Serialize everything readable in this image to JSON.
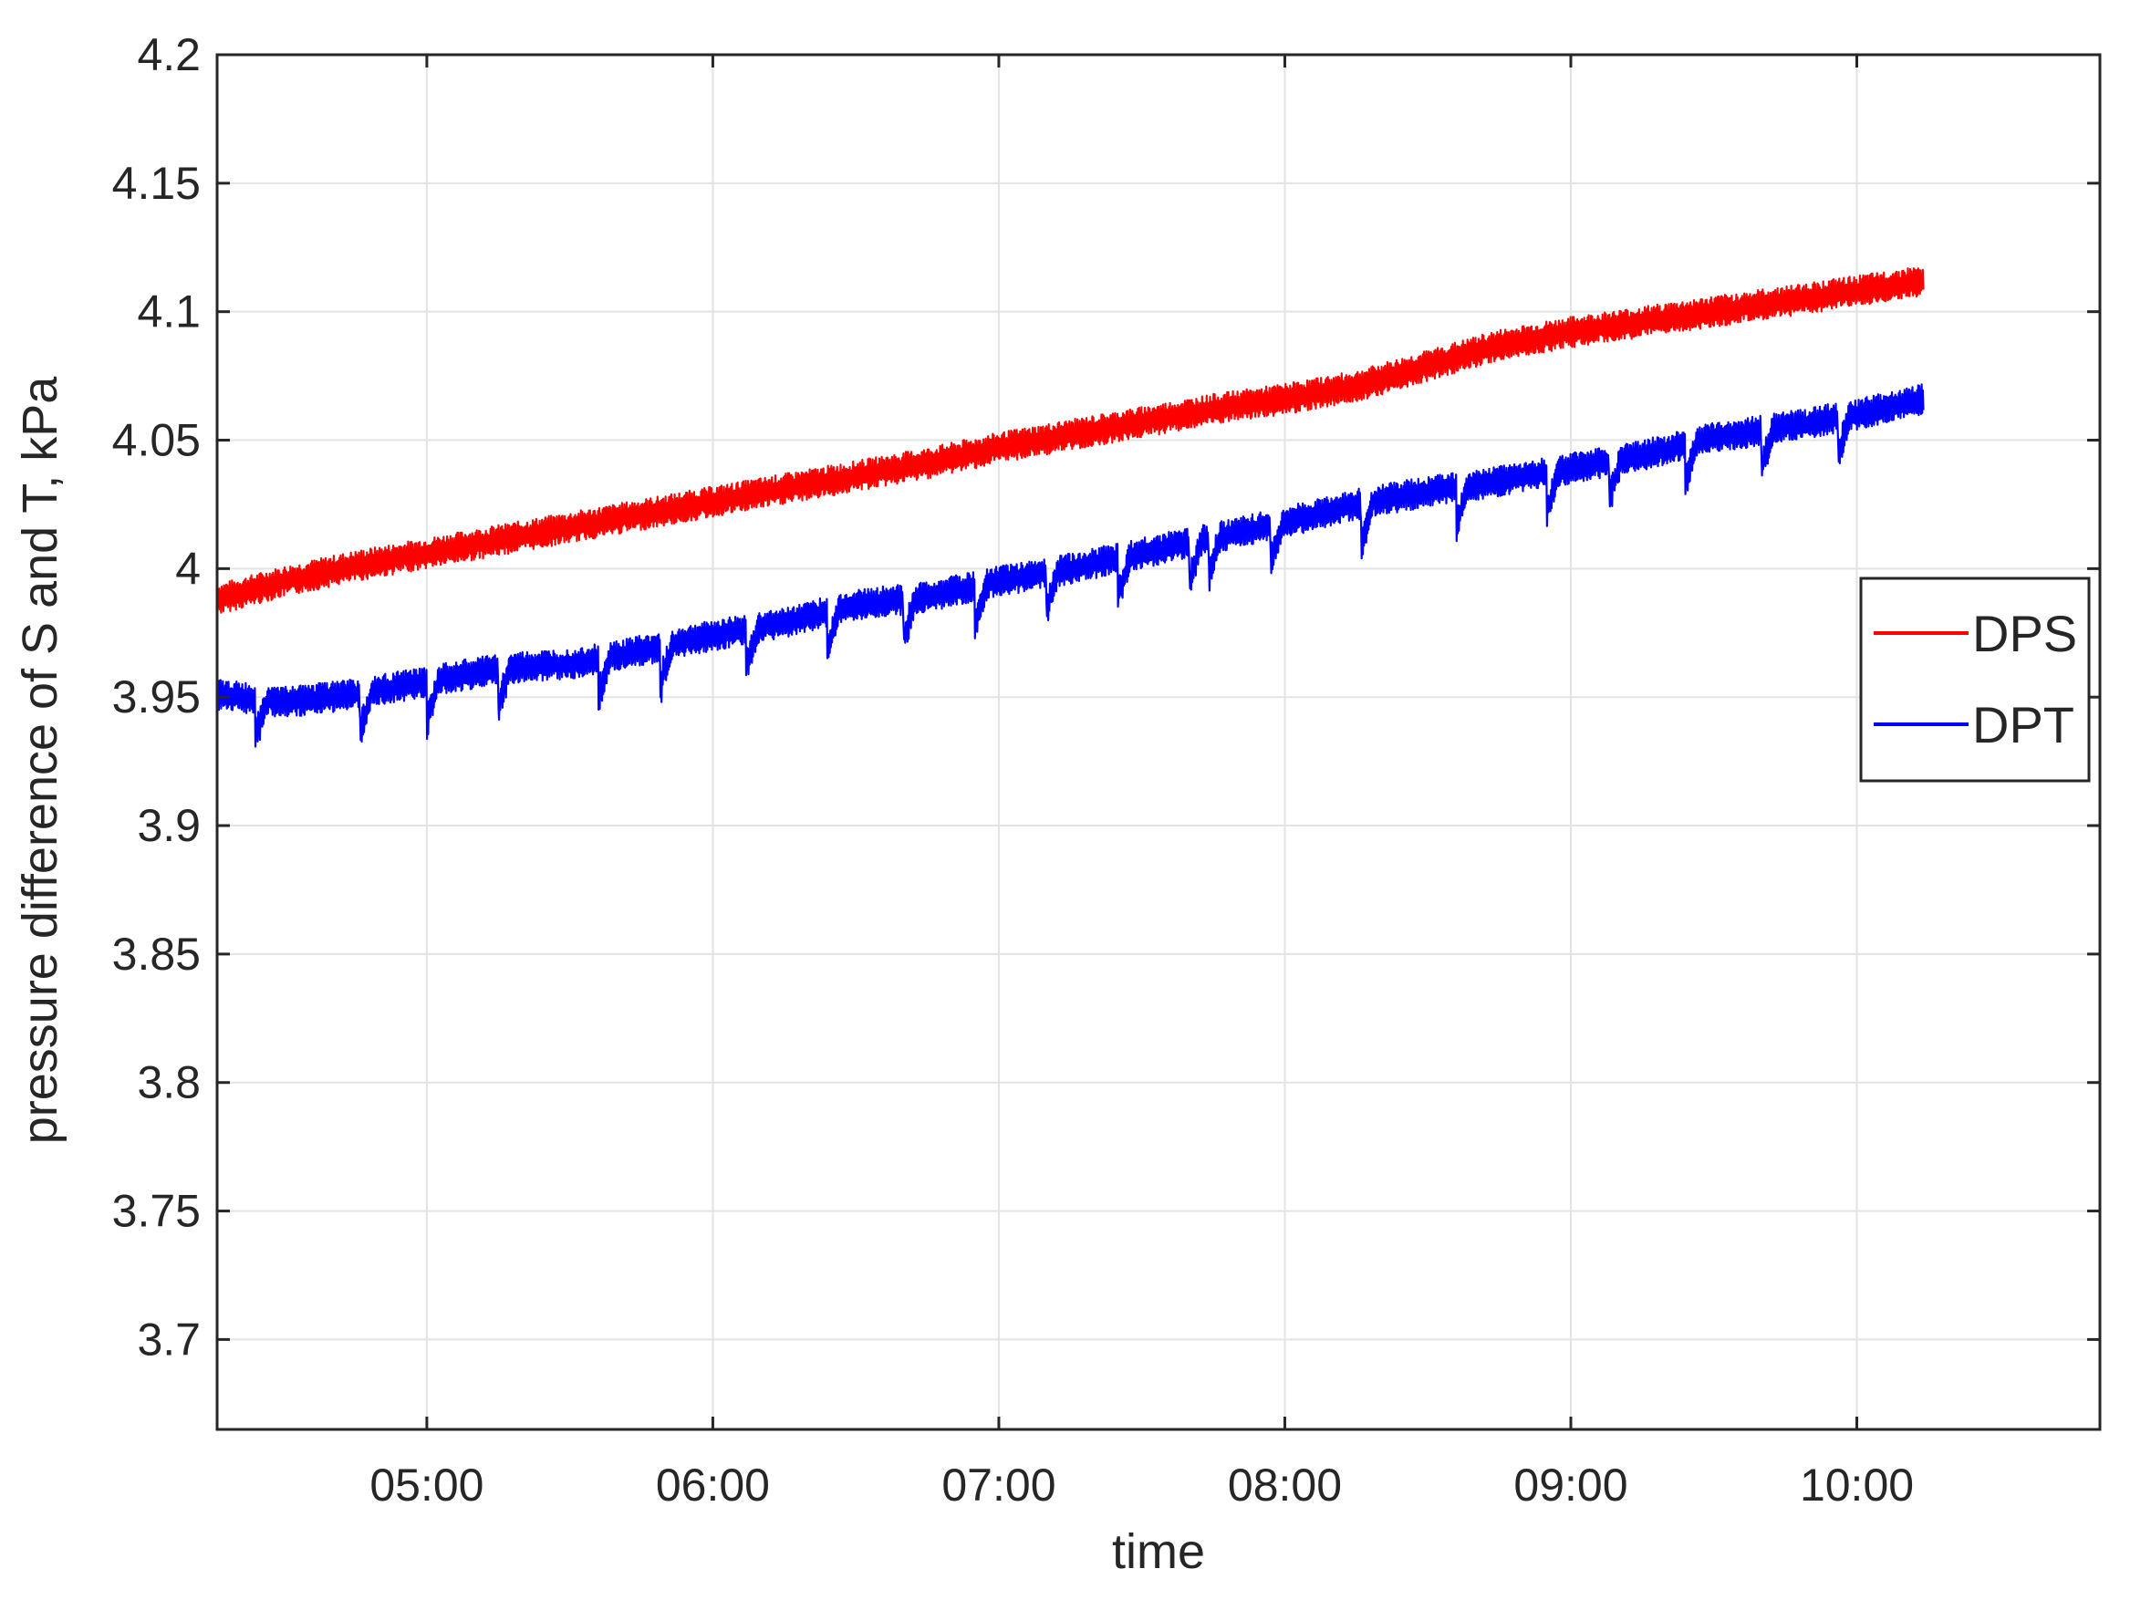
{
  "chart_data": {
    "type": "line",
    "title": "",
    "xlabel": "time",
    "ylabel": "pressure difference of S and T, kPa",
    "x_unit": "time of day",
    "xlim": [
      "04:16",
      "10:51"
    ],
    "ylim": [
      3.665,
      4.2
    ],
    "x_ticks": [
      "05:00",
      "06:00",
      "07:00",
      "08:00",
      "09:00",
      "10:00"
    ],
    "y_ticks": [
      4.2,
      4.15,
      4.1,
      4.05,
      4,
      3.95,
      3.9,
      3.85,
      3.8,
      3.75,
      3.7
    ],
    "y_tick_labels": [
      "4.2",
      "4.15",
      "4.1",
      "4.05",
      "4",
      "3.95",
      "3.9",
      "3.85",
      "3.8",
      "3.75",
      "3.7"
    ],
    "grid": true,
    "legend_position": "right",
    "series": [
      {
        "name": "DPS",
        "color": "#ff0000",
        "x": [
          "04:16",
          "04:30",
          "04:45",
          "05:00",
          "05:15",
          "05:30",
          "05:45",
          "06:00",
          "06:15",
          "06:30",
          "06:45",
          "07:00",
          "07:15",
          "07:30",
          "07:45",
          "08:00",
          "08:15",
          "08:30",
          "08:45",
          "09:00",
          "09:15",
          "09:30",
          "09:45",
          "10:00",
          "10:14"
        ],
        "values": [
          3.988,
          3.995,
          4.001,
          4.006,
          4.011,
          4.016,
          4.021,
          4.026,
          4.031,
          4.036,
          4.041,
          4.047,
          4.052,
          4.057,
          4.062,
          4.066,
          4.071,
          4.079,
          4.087,
          4.092,
          4.096,
          4.1,
          4.104,
          4.108,
          4.112
        ],
        "band_amplitude": 0.006
      },
      {
        "name": "DPT",
        "color": "#0000ff",
        "x": [
          "04:16",
          "04:30",
          "04:45",
          "05:00",
          "05:15",
          "05:30",
          "05:45",
          "06:00",
          "06:15",
          "06:30",
          "06:45",
          "07:00",
          "07:15",
          "07:30",
          "07:45",
          "08:00",
          "08:15",
          "08:30",
          "08:45",
          "09:00",
          "09:15",
          "09:30",
          "09:45",
          "10:00",
          "10:14"
        ],
        "values": [
          3.951,
          3.948,
          3.951,
          3.956,
          3.961,
          3.963,
          3.968,
          3.974,
          3.979,
          3.986,
          3.989,
          3.995,
          4.0,
          4.006,
          4.012,
          4.018,
          4.025,
          4.03,
          4.034,
          4.039,
          4.044,
          4.051,
          4.055,
          4.06,
          4.066
        ],
        "dip_times": [
          "04:24",
          "04:46",
          "05:00",
          "05:15",
          "05:36",
          "05:49",
          "06:07",
          "06:24",
          "06:40",
          "06:55",
          "07:10",
          "07:25",
          "07:40",
          "07:44",
          "07:57",
          "08:16",
          "08:36",
          "08:55",
          "09:08",
          "09:24",
          "09:40",
          "09:56"
        ],
        "band_amplitude": 0.006
      }
    ]
  },
  "legend": {
    "items": [
      {
        "label": "DPS",
        "color": "#ff0000"
      },
      {
        "label": "DPT",
        "color": "#0000ff"
      }
    ]
  }
}
